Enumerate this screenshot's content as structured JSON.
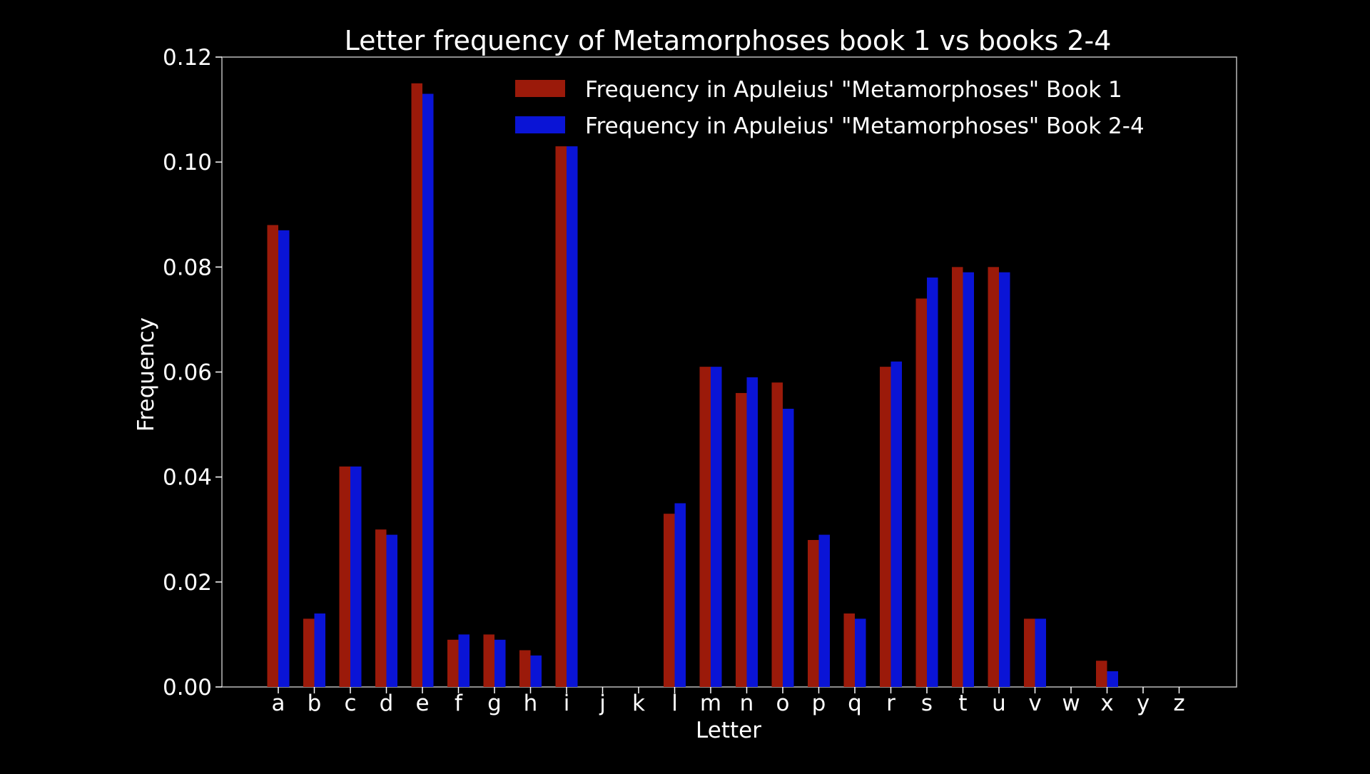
{
  "chart_data": {
    "type": "bar",
    "title": "Letter frequency of Metamorphoses book 1 vs books 2-4",
    "xlabel": "Letter",
    "ylabel": "Frequency",
    "ylim": [
      0,
      0.12
    ],
    "yticks": [
      "0.00",
      "0.02",
      "0.04",
      "0.06",
      "0.08",
      "0.10",
      "0.12"
    ],
    "grid": false,
    "legend_position": "top-right",
    "categories": [
      "a",
      "b",
      "c",
      "d",
      "e",
      "f",
      "g",
      "h",
      "i",
      "j",
      "k",
      "l",
      "m",
      "n",
      "o",
      "p",
      "q",
      "r",
      "s",
      "t",
      "u",
      "v",
      "w",
      "x",
      "y",
      "z"
    ],
    "series": [
      {
        "name": "Frequency in Apuleius' \"Metamorphoses\" Book 1",
        "color": "#9b1a0a",
        "values": [
          0.088,
          0.013,
          0.042,
          0.03,
          0.115,
          0.009,
          0.01,
          0.007,
          0.103,
          0,
          0,
          0.033,
          0.061,
          0.056,
          0.058,
          0.028,
          0.014,
          0.061,
          0.074,
          0.08,
          0.08,
          0.013,
          0,
          0.005,
          0,
          0
        ]
      },
      {
        "name": "Frequency in Apuleius' \"Metamorphoses\" Book 2-4",
        "color": "#0a14d6",
        "values": [
          0.087,
          0.014,
          0.042,
          0.029,
          0.113,
          0.01,
          0.009,
          0.006,
          0.103,
          0,
          0,
          0.035,
          0.061,
          0.059,
          0.053,
          0.029,
          0.013,
          0.062,
          0.078,
          0.079,
          0.079,
          0.013,
          0,
          0.003,
          0,
          0
        ]
      }
    ]
  }
}
